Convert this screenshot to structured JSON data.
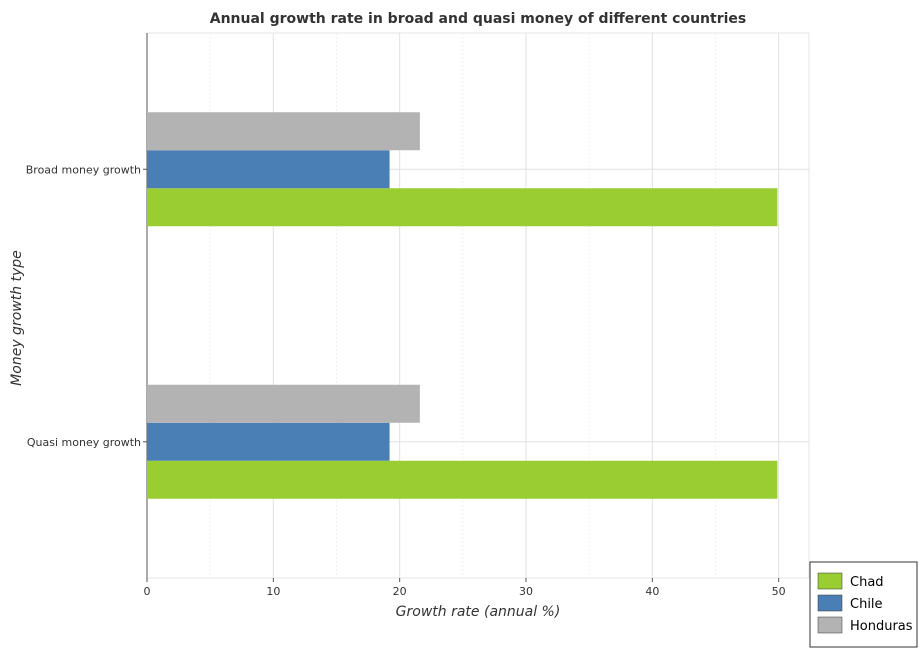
{
  "chart_data": {
    "type": "bar",
    "orientation": "horizontal",
    "title": "Annual growth rate in broad and quasi money of different countries",
    "xlabel": "Growth rate (annual %)",
    "ylabel": "Money growth type",
    "categories": [
      "Quasi money growth",
      "Broad money growth"
    ],
    "series": [
      {
        "name": "Chad",
        "color": "#9acd32",
        "values": [
          49.9,
          49.9
        ]
      },
      {
        "name": "Chile",
        "color": "#4a7fb5",
        "values": [
          19.2,
          19.2
        ]
      },
      {
        "name": "Honduras",
        "color": "#b3b3b3",
        "values": [
          21.6,
          21.6
        ]
      }
    ],
    "xlim": [
      0,
      52.4
    ],
    "xticks": [
      0,
      10,
      20,
      30,
      40,
      50
    ],
    "grid": true,
    "legend_position": "bottom-right"
  }
}
